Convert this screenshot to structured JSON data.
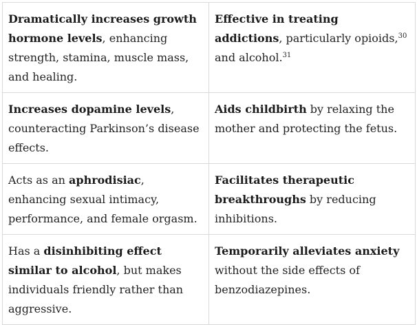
{
  "rows": [
    {
      "left": {
        "bold": "Dramatically increases growth hormone levels",
        "text": ", enhancing strength, stamina, muscle mass, and healing."
      },
      "right": {
        "bold": "Effective in treating addictions",
        "text_a": ", particularly opioids,",
        "sup_a": "30",
        "text_b": " and alcohol.",
        "sup_b": "31"
      }
    },
    {
      "left": {
        "bold": "Increases dopamine levels",
        "text": ", counteracting Parkinson’s disease effects."
      },
      "right": {
        "bold": "Aids childbirth",
        "text": " by relaxing the mother and protecting the fetus."
      }
    },
    {
      "left": {
        "pre": "Acts as an ",
        "bold": "aphrodisiac",
        "text": ", enhancing sexual intimacy, performance, and female orgasm."
      },
      "right": {
        "bold": "Facilitates therapeutic breakthroughs",
        "text": " by reducing inhibitions."
      }
    },
    {
      "left": {
        "pre": "Has a ",
        "bold": "disinhibiting effect similar to alcohol",
        "text": ", but makes individuals friendly rather than aggressive."
      },
      "right": {
        "bold": "Temporarily alleviates anxiety",
        "text": " without the side effects of benzodiazepines."
      }
    }
  ]
}
